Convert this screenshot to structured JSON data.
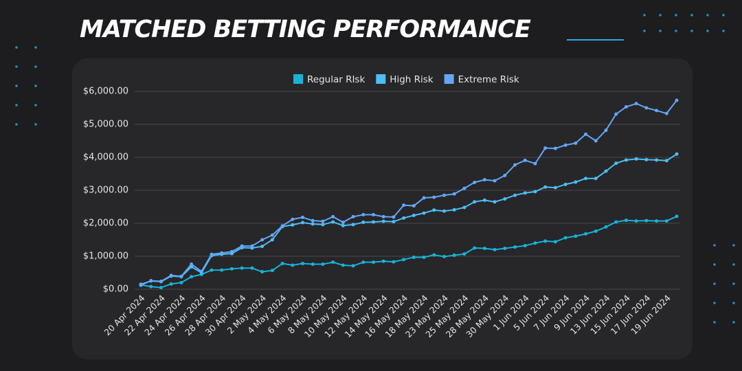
{
  "chart_data": {
    "type": "line",
    "title": "MATCHED BETTING PERFORMANCE",
    "categories": [
      "20 Apr 2024",
      null,
      "22 Apr 2024",
      null,
      "24 Apr 2024",
      null,
      "26 Apr 2024",
      null,
      "28 Apr 2024",
      null,
      "30 Apr 2024",
      null,
      "2 May 2024",
      null,
      "4 May 2024",
      null,
      "6 May 2024",
      null,
      "8 May 2024",
      null,
      "10 May 2024",
      null,
      "12 May 2024",
      null,
      "14 May 2024",
      null,
      "16 May 2024",
      null,
      "18 May 2024",
      null,
      "23 May 2024",
      null,
      "25 May 2024",
      null,
      "28 May 2024",
      null,
      "30 May 2024",
      null,
      "1 Jun 2024",
      null,
      "5 Jun 2024",
      null,
      "7 Jun 2024",
      null,
      "9 Jun 2024",
      null,
      "13 Jun 2024",
      null,
      "15 Jun 2024",
      null,
      "17 Jun 2024",
      null,
      "19 Jun 2024",
      null
    ],
    "series": [
      {
        "name": "Regular RIsk",
        "color": "#17b3d9",
        "values": [
          130,
          80,
          50,
          160,
          200,
          380,
          450,
          580,
          580,
          620,
          640,
          640,
          530,
          570,
          780,
          730,
          780,
          760,
          760,
          820,
          730,
          710,
          820,
          820,
          850,
          830,
          900,
          970,
          970,
          1040,
          990,
          1030,
          1070,
          1250,
          1240,
          1200,
          1240,
          1280,
          1320,
          1400,
          1460,
          1440,
          1560,
          1610,
          1680,
          1760,
          1890,
          2040,
          2090,
          2070,
          2080,
          2070,
          2070,
          2210
        ]
      },
      {
        "name": "High Risk",
        "color": "#4dbef5",
        "values": [
          150,
          250,
          230,
          400,
          380,
          680,
          500,
          1020,
          1060,
          1080,
          1260,
          1250,
          1300,
          1500,
          1900,
          1950,
          2020,
          1980,
          1960,
          2040,
          1930,
          1960,
          2030,
          2040,
          2060,
          2050,
          2160,
          2240,
          2310,
          2400,
          2370,
          2410,
          2480,
          2650,
          2700,
          2650,
          2740,
          2850,
          2920,
          2960,
          3100,
          3080,
          3180,
          3250,
          3360,
          3360,
          3580,
          3820,
          3920,
          3950,
          3930,
          3920,
          3900,
          4100
        ]
      },
      {
        "name": "Extreme Risk",
        "color": "#62a8f7",
        "values": [
          120,
          260,
          240,
          420,
          390,
          760,
          540,
          1060,
          1100,
          1140,
          1310,
          1310,
          1500,
          1640,
          1920,
          2120,
          2180,
          2080,
          2060,
          2200,
          2030,
          2200,
          2260,
          2260,
          2200,
          2190,
          2550,
          2530,
          2770,
          2790,
          2850,
          2890,
          3060,
          3240,
          3320,
          3290,
          3450,
          3770,
          3910,
          3810,
          4280,
          4270,
          4370,
          4430,
          4700,
          4500,
          4820,
          5310,
          5530,
          5630,
          5500,
          5420,
          5330,
          5730
        ]
      }
    ],
    "ylim": [
      0,
      6000
    ],
    "yticks": [
      {
        "value": 0,
        "label": "$0.00"
      },
      {
        "value": 1000,
        "label": "$1,000.00"
      },
      {
        "value": 2000,
        "label": "$2,000.00"
      },
      {
        "value": 3000,
        "label": "$3,000.00"
      },
      {
        "value": 4000,
        "label": "$4,000.00"
      },
      {
        "value": 5000,
        "label": "$5,000.00"
      },
      {
        "value": 6000,
        "label": "$6,000.00"
      }
    ],
    "grid": true,
    "legend": "top"
  }
}
